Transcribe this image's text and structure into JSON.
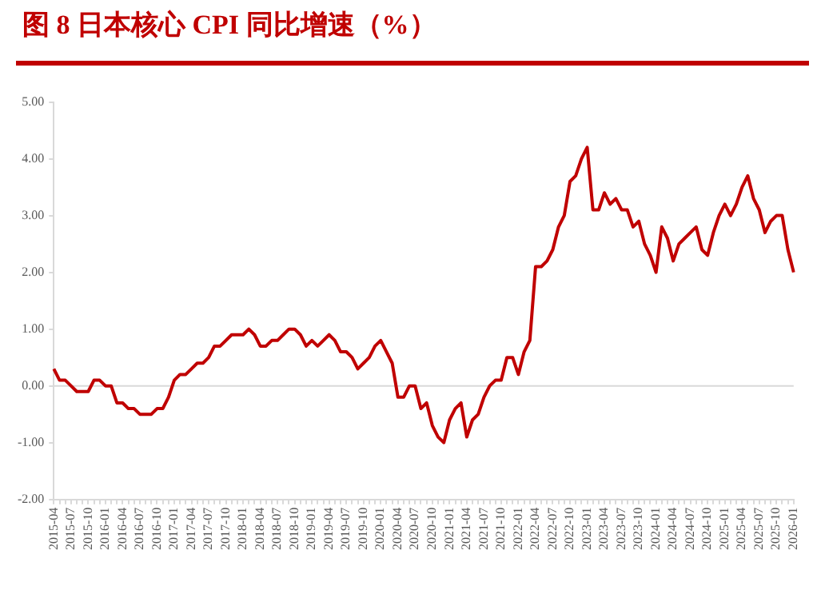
{
  "chart_data": {
    "type": "line",
    "title": "图 8 日本核心 CPI 同比增速（%）",
    "categories": [
      "2015-04",
      null,
      null,
      "2015-07",
      null,
      null,
      "2015-10",
      null,
      null,
      "2016-01",
      null,
      null,
      "2016-04",
      null,
      null,
      "2016-07",
      null,
      null,
      "2016-10",
      null,
      null,
      "2017-01",
      null,
      null,
      "2017-04",
      null,
      null,
      "2017-07",
      null,
      null,
      "2017-10",
      null,
      null,
      "2018-01",
      null,
      null,
      "2018-04",
      null,
      null,
      "2018-07",
      null,
      null,
      "2018-10",
      null,
      null,
      "2019-01",
      null,
      null,
      "2019-04",
      null,
      null,
      "2019-07",
      null,
      null,
      "2019-10",
      null,
      null,
      "2020-01",
      null,
      null,
      "2020-04",
      null,
      null,
      "2020-07",
      null,
      null,
      "2020-10",
      null,
      null,
      "2021-01",
      null,
      null,
      "2021-04",
      null,
      null,
      "2021-07",
      null,
      null,
      "2021-10",
      null,
      null,
      "2022-01",
      null,
      null,
      "2022-04",
      null,
      null,
      "2022-07",
      null,
      null,
      "2022-10",
      null,
      null,
      "2023-01",
      null,
      null,
      "2023-04",
      null,
      null,
      "2023-07",
      null,
      null,
      "2023-10",
      null,
      null,
      "2024-01",
      null,
      null,
      "2024-04",
      null,
      null,
      "2024-07",
      null,
      null,
      "2024-10",
      null,
      null,
      "2025-01",
      null,
      null,
      "2025-04",
      null,
      null,
      "2025-07",
      null,
      null,
      "2025-10",
      null,
      null,
      "2026-01"
    ],
    "series": [
      {
        "color": "#c00000",
        "values": [
          0.3,
          0.1,
          0.1,
          0.0,
          -0.1,
          -0.1,
          -0.1,
          0.1,
          0.1,
          0.0,
          0.0,
          -0.3,
          -0.3,
          -0.4,
          -0.4,
          -0.5,
          -0.5,
          -0.5,
          -0.4,
          -0.4,
          -0.2,
          0.1,
          0.2,
          0.2,
          0.3,
          0.4,
          0.4,
          0.5,
          0.7,
          0.7,
          0.8,
          0.9,
          0.9,
          0.9,
          1.0,
          0.9,
          0.7,
          0.7,
          0.8,
          0.8,
          0.9,
          1.0,
          1.0,
          0.9,
          0.7,
          0.8,
          0.7,
          0.8,
          0.9,
          0.8,
          0.6,
          0.6,
          0.5,
          0.3,
          0.4,
          0.5,
          0.7,
          0.8,
          0.6,
          0.4,
          -0.2,
          -0.2,
          0.0,
          0.0,
          -0.4,
          -0.3,
          -0.7,
          -0.9,
          -1.0,
          -0.6,
          -0.4,
          -0.3,
          -0.9,
          -0.6,
          -0.5,
          -0.2,
          0.0,
          0.1,
          0.1,
          0.5,
          0.5,
          0.2,
          0.6,
          0.8,
          2.1,
          2.1,
          2.2,
          2.4,
          2.8,
          3.0,
          3.6,
          3.7,
          4.0,
          4.2,
          3.1,
          3.1,
          3.4,
          3.2,
          3.3,
          3.1,
          3.1,
          2.8,
          2.9,
          2.5,
          2.3,
          2.0,
          2.8,
          2.6,
          2.2,
          2.5,
          2.6,
          2.7,
          2.8,
          2.4,
          2.3,
          2.7,
          3.0,
          3.2,
          3.0,
          3.2,
          3.5,
          3.7,
          3.3,
          3.1,
          2.7,
          2.9,
          3.0,
          3.0,
          2.4,
          2.0
        ]
      }
    ],
    "ylim": [
      -2,
      5
    ],
    "yticks": [
      {
        "value": -2,
        "label": "-2.00"
      },
      {
        "value": -1,
        "label": "-1.00"
      },
      {
        "value": 0,
        "label": "0.00"
      },
      {
        "value": 1,
        "label": "1.00"
      },
      {
        "value": 2,
        "label": "2.00"
      },
      {
        "value": 3,
        "label": "3.00"
      },
      {
        "value": 4,
        "label": "4.00"
      },
      {
        "value": 5,
        "label": "5.00"
      }
    ],
    "ref_lines": [
      {
        "axis": "y",
        "value": 0,
        "color": "#d9d9d9"
      }
    ],
    "grid": false,
    "legend": false,
    "marker": "none",
    "line_style": "solid"
  }
}
